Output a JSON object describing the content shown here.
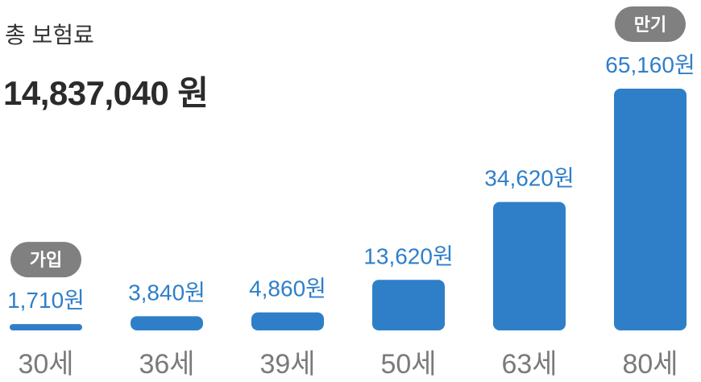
{
  "summary": {
    "label": "총 보험료",
    "total": "14,837,040 원"
  },
  "chart_data": {
    "type": "bar",
    "categories": [
      "30세",
      "36세",
      "39세",
      "50세",
      "63세",
      "80세"
    ],
    "values": [
      1710,
      3840,
      4860,
      13620,
      34620,
      65160
    ],
    "value_labels": [
      "1,710원",
      "3,840원",
      "4,860원",
      "13,620원",
      "34,620원",
      "65,160원"
    ],
    "badges": [
      {
        "index": 0,
        "text": "가입"
      },
      {
        "index": 5,
        "text": "만기"
      }
    ],
    "bar_color": "#2f7fc8",
    "value_label_color": "#2f7fc8",
    "badge_color": "#808080",
    "category_color": "#7a7a7a"
  }
}
